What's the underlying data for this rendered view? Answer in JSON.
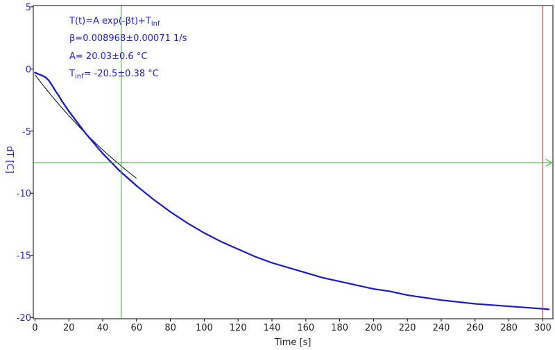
{
  "chart_data": {
    "type": "line",
    "xlabel": "Time [s]",
    "ylabel": "dT [C]",
    "xlim": [
      -1,
      306
    ],
    "ylim": [
      -20.1,
      5.1
    ],
    "x_ticks": [
      0,
      20,
      40,
      60,
      80,
      100,
      120,
      140,
      160,
      180,
      200,
      220,
      240,
      260,
      280,
      300
    ],
    "y_ticks": [
      5,
      0,
      -5,
      -10,
      -15,
      -20
    ],
    "grid": false,
    "annotations": {
      "formula": {
        "base": "T(t)=A exp(-βt)+T",
        "sub": "inf"
      },
      "beta": "β=0.008968±0.00071 1/s",
      "amp": "A= 20.03±0.6 °C",
      "tinf": {
        "base": "T",
        "sub": "inf",
        "rest": "= -20.5±0.38 °C"
      }
    },
    "fit": {
      "A": 20.03,
      "beta": 0.008968,
      "T_inf": -20.5
    },
    "data_series": {
      "name": "",
      "color": "#1a1acc",
      "points": [
        [
          0,
          -0.3
        ],
        [
          2,
          -0.42
        ],
        [
          4,
          -0.52
        ],
        [
          6,
          -0.65
        ],
        [
          8,
          -0.9
        ],
        [
          10,
          -1.3
        ],
        [
          12,
          -1.75
        ],
        [
          14,
          -2.15
        ],
        [
          16,
          -2.6
        ],
        [
          18,
          -3.0
        ],
        [
          20,
          -3.4
        ],
        [
          25,
          -4.3
        ],
        [
          30,
          -5.2
        ],
        [
          35,
          -6.0
        ],
        [
          40,
          -6.8
        ],
        [
          45,
          -7.5
        ],
        [
          50,
          -8.2
        ],
        [
          55,
          -8.8
        ],
        [
          60,
          -9.4
        ],
        [
          70,
          -10.5
        ],
        [
          80,
          -11.5
        ],
        [
          90,
          -12.4
        ],
        [
          100,
          -13.2
        ],
        [
          110,
          -13.9
        ],
        [
          120,
          -14.5
        ],
        [
          130,
          -15.1
        ],
        [
          140,
          -15.6
        ],
        [
          150,
          -16.0
        ],
        [
          160,
          -16.4
        ],
        [
          170,
          -16.8
        ],
        [
          180,
          -17.1
        ],
        [
          190,
          -17.4
        ],
        [
          200,
          -17.7
        ],
        [
          210,
          -17.9
        ],
        [
          220,
          -18.2
        ],
        [
          230,
          -18.4
        ],
        [
          240,
          -18.6
        ],
        [
          250,
          -18.75
        ],
        [
          260,
          -18.9
        ],
        [
          270,
          -19.0
        ],
        [
          280,
          -19.1
        ],
        [
          290,
          -19.2
        ],
        [
          300,
          -19.3
        ],
        [
          304,
          -19.35
        ]
      ]
    },
    "fit_line": {
      "color": "#000000",
      "x_start": 0,
      "x_end": 60
    },
    "cursors": {
      "vertical_green_x": 51,
      "vertical_red_x": 300,
      "horizontal_green_y": -7.55,
      "green": "#22bb22",
      "red": "#cc2222"
    }
  }
}
